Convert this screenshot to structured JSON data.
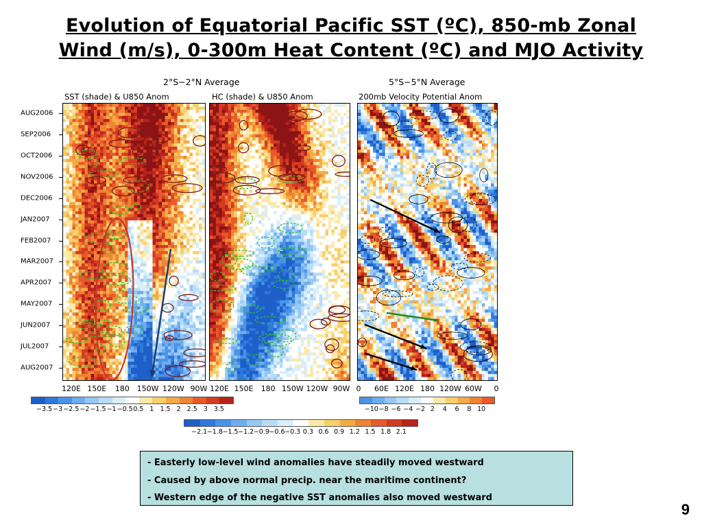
{
  "title": {
    "line1": "Evolution of Equatorial Pacific SST (ºC), 850-mb Zonal",
    "line2": "Wind (m/s), 0-300m Heat Content (ºC) and MJO Activity"
  },
  "chart_data": [
    {
      "type": "heatmap",
      "group_title": "2°S−2°N Average",
      "title": "SST (shade) & U850 Anom",
      "y_ticks": [
        "AUG2006",
        "SEP2006",
        "OCT2006",
        "NOV2006",
        "DEC2006",
        "JAN2007",
        "FEB2007",
        "MAR2007",
        "APR2007",
        "MAY2007",
        "JUN2007",
        "JUL2007",
        "AUG2007"
      ],
      "x_ticks": [
        "120E",
        "150E",
        "180",
        "150W",
        "120W",
        "90W"
      ],
      "colorbar_ticks": [
        "−3.5",
        "−3",
        "−2.5",
        "−2",
        "−1.5",
        "−1",
        "−0.5",
        "0.5",
        "1",
        "1.5",
        "2",
        "2.5",
        "3",
        "3.5"
      ],
      "annotations": [
        {
          "kind": "ellipse",
          "color": "#c0392b",
          "description": "westerly anomaly region 150E–180"
        },
        {
          "kind": "arrow",
          "color": "#1f3a6e",
          "description": "westward propagation of easterly anomalies"
        }
      ]
    },
    {
      "type": "heatmap",
      "title": "HC (shade) & U850 Anom",
      "x_ticks": [
        "120E",
        "150E",
        "180",
        "150W",
        "120W",
        "90W"
      ],
      "colorbar_ticks": [
        "−2.1",
        "−1.8",
        "−1.5",
        "−1.2",
        "−0.9",
        "−0.6",
        "−0.3",
        "0.3",
        "0.6",
        "0.9",
        "1.2",
        "1.5",
        "1.8",
        "2.1"
      ]
    },
    {
      "type": "heatmap",
      "group_title": "5°S−5°N Average",
      "title": "200mb Velocity Potential Anom",
      "x_ticks": [
        "0",
        "60E",
        "120E",
        "180",
        "120W",
        "60W",
        "0"
      ],
      "colorbar_ticks": [
        "−10",
        "−8",
        "−6",
        "−4",
        "−2",
        "2",
        "4",
        "6",
        "8",
        "10"
      ],
      "annotations": [
        {
          "kind": "arrow",
          "color": "#000000",
          "description": "eastward MJO propagation"
        },
        {
          "kind": "arrow",
          "color": "#000000",
          "description": "eastward MJO propagation"
        },
        {
          "kind": "arrow",
          "color": "#000000",
          "description": "eastward MJO propagation"
        },
        {
          "kind": "line",
          "color": "#1e8b1e",
          "description": "highlighted MJO event"
        }
      ]
    }
  ],
  "colors": {
    "neg": [
      "#1e5fc8",
      "#2f78dc",
      "#4b93e6",
      "#6fadef",
      "#95c8f5",
      "#b8dcf8",
      "#d9eefb"
    ],
    "pos": [
      "#fbe9a8",
      "#f7cf6b",
      "#f4ab45",
      "#ef8434",
      "#e85a2a",
      "#d43b22",
      "#b8221c",
      "#8c1414"
    ],
    "white": "#ffffff",
    "notes_bg": "#b9e0e0"
  },
  "notes": [
    {
      "dash": "- ",
      "text": "Easterly low-level wind anomalies have steadily moved westward"
    },
    {
      "dash": "- ",
      "text": "Caused by above normal precip. near the maritime continent?"
    },
    {
      "dash": "- ",
      "text": "Western edge of the negative SST anomalies also moved westward"
    }
  ],
  "page_number": "9"
}
